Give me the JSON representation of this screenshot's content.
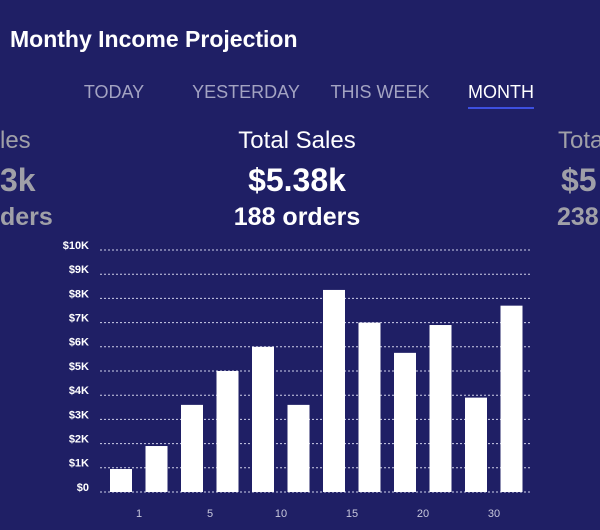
{
  "header": {
    "title": "Monthy Income Projection"
  },
  "tabs": [
    "TODAY",
    "YESTERDAY",
    "THIS WEEK",
    "MONTH"
  ],
  "cards": [
    {
      "title": "les",
      "amount": "3k",
      "orders": "ders"
    },
    {
      "title": "Total Sales",
      "amount": "$5.38k",
      "orders": "188 orders"
    },
    {
      "title": "Tota",
      "amount": "$5",
      "orders": "238"
    }
  ],
  "chart_data": {
    "type": "bar",
    "x_labels": [
      "1",
      "5",
      "10",
      "15",
      "20",
      "30"
    ],
    "values": [
      950,
      1900,
      3600,
      5000,
      6000,
      3600,
      8350,
      7000,
      5750,
      6900,
      3900,
      7700
    ],
    "color": "#ffffff",
    "ylim": [
      0,
      10000
    ],
    "yticks": [
      {
        "value": 0,
        "label": "$0"
      },
      {
        "value": 1000,
        "label": "$1K"
      },
      {
        "value": 2000,
        "label": "$2K"
      },
      {
        "value": 3000,
        "label": "$3K"
      },
      {
        "value": 4000,
        "label": "$4K"
      },
      {
        "value": 5000,
        "label": "$5K"
      },
      {
        "value": 6000,
        "label": "$6K"
      },
      {
        "value": 7000,
        "label": "$7K"
      },
      {
        "value": 8000,
        "label": "$8K"
      },
      {
        "value": 9000,
        "label": "$9K"
      },
      {
        "value": 10000,
        "label": "$10K"
      }
    ],
    "grid": true
  }
}
